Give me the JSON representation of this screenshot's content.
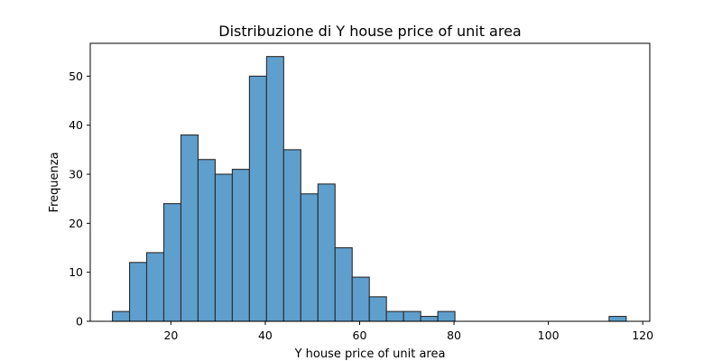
{
  "chart_data": {
    "type": "bar",
    "title": "Distribuzione di Y house price of unit area",
    "xlabel": "Y house price of unit area",
    "ylabel": "Frequenza",
    "xlim": [
      2.9,
      121.5
    ],
    "ylim": [
      0,
      56.7
    ],
    "x_ticks": [
      20,
      40,
      60,
      80,
      100,
      120
    ],
    "y_ticks": [
      0,
      10,
      20,
      30,
      40,
      50
    ],
    "grid": false,
    "bar_color": "#5f9fcd",
    "bar_edge_color": "#2b2b2b",
    "bin_edges": [
      7.6,
      11.23,
      14.86,
      18.49,
      22.12,
      25.75,
      29.38,
      33.01,
      36.64,
      40.27,
      43.9,
      47.53,
      51.16,
      54.79,
      58.42,
      62.05,
      65.68,
      69.31,
      72.94,
      76.57,
      80.2,
      83.83,
      87.46,
      91.09,
      94.72,
      98.35,
      101.98,
      105.61,
      109.24,
      112.87,
      116.5
    ],
    "counts": [
      2,
      12,
      14,
      24,
      38,
      33,
      30,
      31,
      50,
      54,
      35,
      26,
      28,
      15,
      9,
      5,
      2,
      2,
      1,
      2,
      0,
      0,
      0,
      0,
      0,
      0,
      0,
      0,
      0,
      1
    ]
  }
}
